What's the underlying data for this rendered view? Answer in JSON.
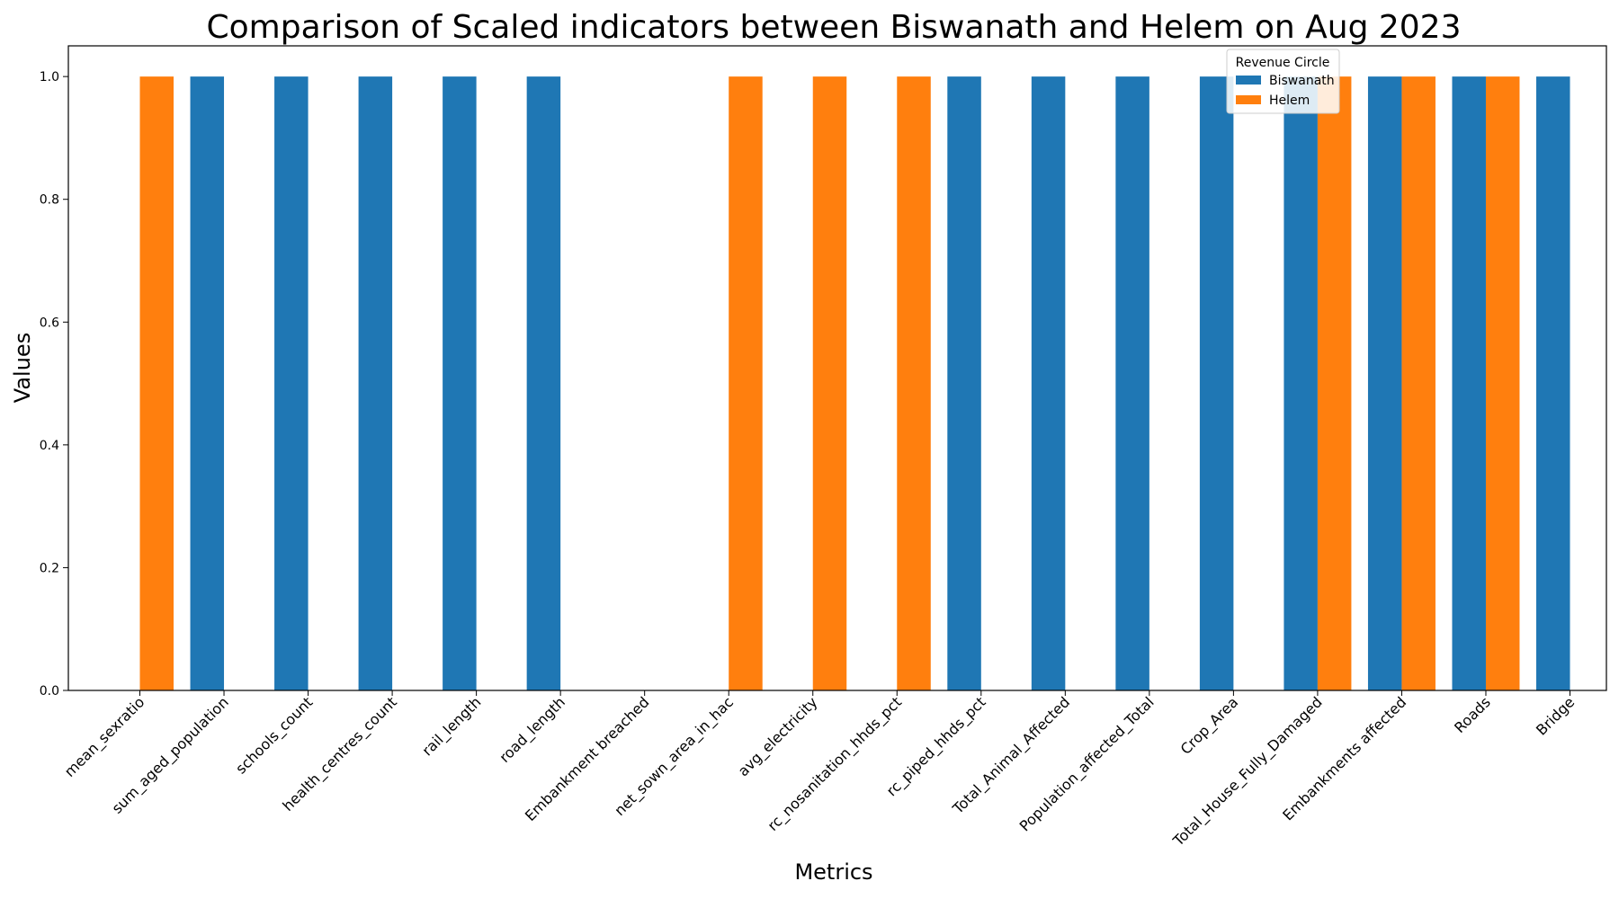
{
  "chart_data": {
    "type": "bar",
    "title": "Comparison of Scaled indicators between Biswanath and Helem on Aug 2023",
    "xlabel": "Metrics",
    "ylabel": "Values",
    "ylim": [
      0,
      1.05
    ],
    "yticks": [
      "0.0",
      "0.2",
      "0.4",
      "0.6",
      "0.8",
      "1.0"
    ],
    "grid": false,
    "categories": [
      "mean_sexratio",
      "sum_aged_population",
      "schools_count",
      "health_centres_count",
      "rail_length",
      "road_length",
      "Embankment breached",
      "net_sown_area_in_hac",
      "avg_electricity",
      "rc_nosanitation_hhds_pct",
      "rc_piped_hhds_pct",
      "Total_Animal_Affected",
      "Population_affected_Total",
      "Crop_Area",
      "Total_House_Fully_Damaged",
      "Embankments affected",
      "Roads",
      "Bridge"
    ],
    "legend": {
      "title": "Revenue Circle",
      "position": "top-right"
    },
    "series": [
      {
        "name": "Biswanath",
        "color": "#1f77b4",
        "values": [
          0,
          1,
          1,
          1,
          1,
          1,
          0,
          0,
          0,
          0,
          1,
          1,
          1,
          1,
          1,
          1,
          1,
          1
        ]
      },
      {
        "name": "Helem",
        "color": "#ff7f0e",
        "values": [
          1,
          0,
          0,
          0,
          0,
          0,
          0,
          1,
          1,
          1,
          0,
          0,
          0,
          0,
          1,
          1,
          1,
          0
        ]
      }
    ]
  }
}
